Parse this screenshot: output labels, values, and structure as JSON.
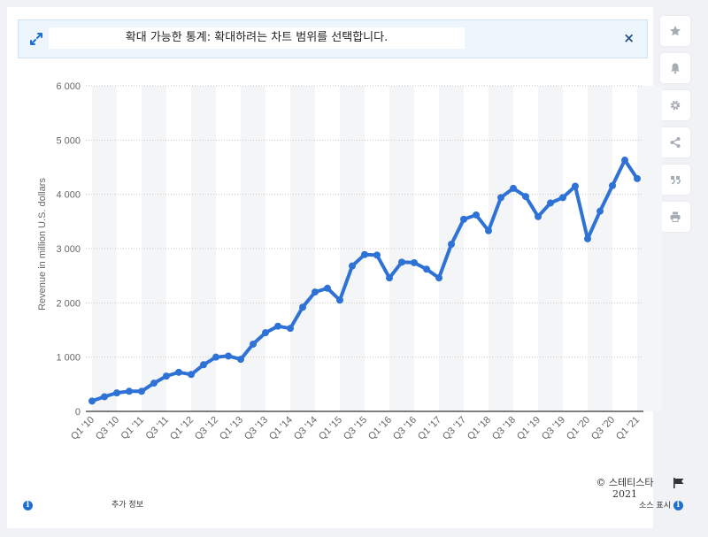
{
  "banner": {
    "text": "확대 가능한 통계: 확대하려는 차트 범위를 선택합니다.",
    "close_symbol": "×",
    "expand_icon": "expand-arrows-icon"
  },
  "sidebar": {
    "items": [
      {
        "name": "star-icon"
      },
      {
        "name": "bell-icon"
      },
      {
        "name": "gear-icon"
      },
      {
        "name": "share-icon"
      },
      {
        "name": "quote-icon"
      },
      {
        "name": "print-icon"
      }
    ]
  },
  "colors": {
    "line": "#2f72d6",
    "band": "#f4f5f7",
    "grid": "#c9c9c9",
    "axis": "#000000",
    "icon": "#a7adb5"
  },
  "chart_data": {
    "type": "line",
    "ylabel": "Revenue in million U.S. dollars",
    "xlabel": "",
    "ylim": [
      0,
      6000
    ],
    "yticks": [
      0,
      1000,
      2000,
      3000,
      4000,
      5000,
      6000
    ],
    "ytick_labels": [
      "0",
      "1 000",
      "2 000",
      "3 000",
      "4 000",
      "5 000",
      "6 000"
    ],
    "grid": true,
    "categories": [
      "Q1 '10",
      "Q2 '10",
      "Q3 '10",
      "Q4 '10",
      "Q1 '11",
      "Q2 '11",
      "Q3 '11",
      "Q4 '11",
      "Q1 '12",
      "Q2 '12",
      "Q3 '12",
      "Q4 '12",
      "Q1 '13",
      "Q2 '13",
      "Q3 '13",
      "Q4 '13",
      "Q1 '14",
      "Q2 '14",
      "Q3 '14",
      "Q4 '14",
      "Q1 '15",
      "Q2 '15",
      "Q3 '15",
      "Q4 '15",
      "Q1 '16",
      "Q2 '16",
      "Q3 '16",
      "Q4 '16",
      "Q1 '17",
      "Q2 '17",
      "Q3 '17",
      "Q4 '17",
      "Q1 '18",
      "Q2 '18",
      "Q3 '18",
      "Q4 '18",
      "Q1 '19",
      "Q2 '19",
      "Q3 '19",
      "Q4 '19",
      "Q1 '20",
      "Q2 '20",
      "Q3 '20",
      "Q4 '20",
      "Q1 '21"
    ],
    "xtick_labels": [
      "Q1 '10",
      "Q3 '10",
      "Q1 '11",
      "Q3 '11",
      "Q1 '12",
      "Q3 '12",
      "Q1 '13",
      "Q3 '13",
      "Q1 '14",
      "Q3 '14",
      "Q1 '15",
      "Q3 '15",
      "Q1 '16",
      "Q3 '16",
      "Q1 '17",
      "Q3 '17",
      "Q1 '18",
      "Q3 '18",
      "Q1 '19",
      "Q3 '19",
      "Q1 '20",
      "Q3 '20",
      "Q1 '21"
    ],
    "series": [
      {
        "values": [
          190,
          270,
          340,
          370,
          370,
          520,
          650,
          720,
          680,
          860,
          1000,
          1020,
          960,
          1240,
          1450,
          1570,
          1530,
          1920,
          2200,
          2270,
          2050,
          2680,
          2890,
          2880,
          2460,
          2750,
          2740,
          2620,
          2460,
          3080,
          3540,
          3620,
          3330,
          3940,
          4110,
          3960,
          3590,
          3840,
          3940,
          4150,
          3180,
          3690,
          4160,
          4630,
          4290
        ]
      }
    ]
  },
  "footer": {
    "more_info": "추가 정보",
    "copyright_line1": "© 스테티스타",
    "copyright_line2": "2021",
    "source": "소스 표시"
  }
}
